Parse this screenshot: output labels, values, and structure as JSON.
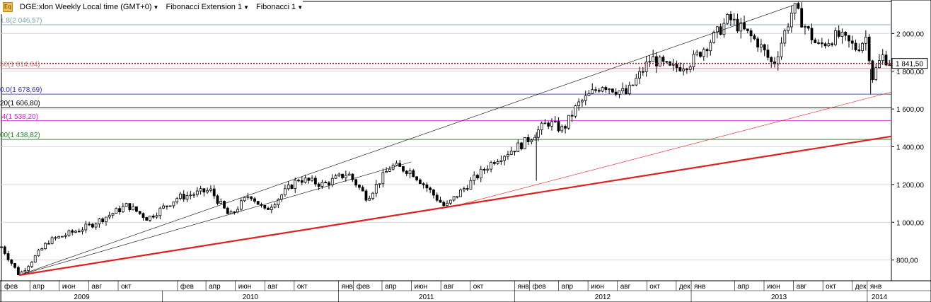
{
  "header": {
    "icon_label": "Eq",
    "symbol": "DGE:xlon Weekly Local time (GMT+0)",
    "study1": "Fibonacci Extension 1",
    "study2": "Fibonacci 1"
  },
  "price_marker": {
    "value_label": "1 841,50",
    "color": "#c00000"
  },
  "fib_levels": [
    {
      "label": "1.8(2 046,57)",
      "value": 2046.57,
      "color": "#7aa7b0"
    },
    {
      "label": "50(1 814,64)",
      "value": 1814.64,
      "color": "#c08080"
    },
    {
      "label": "0.0(1 678,69)",
      "value": 1678.69,
      "color": "#3030c0"
    },
    {
      "label": "20(1 606,80)",
      "value": 1606.8,
      "color": "#000000"
    },
    {
      "label": ".4(1 538,20)",
      "value": 1538.2,
      "color": "#d020d0"
    },
    {
      "label": "00(1 438,82)",
      "value": 1438.82,
      "color": "#208020"
    }
  ],
  "chart_data": {
    "type": "candlestick",
    "title": "DGE:xlon Weekly",
    "y_tick_labels": [
      "2 000,00",
      "1 800,00",
      "1 600,00",
      "1 400,00",
      "1 200,00",
      "1 000,00",
      "800,00"
    ],
    "y_tick_values": [
      2000,
      1800,
      1600,
      1400,
      1200,
      1000,
      800
    ],
    "ylim": [
      690,
      2170
    ],
    "x_range": [
      "2009-02-01",
      "2014-02-20"
    ],
    "month_labels": [
      {
        "label": "фев",
        "date": "2009-02-01"
      },
      {
        "label": "апр",
        "date": "2009-04-01"
      },
      {
        "label": "июн",
        "date": "2009-06-01"
      },
      {
        "label": "авг",
        "date": "2009-08-01"
      },
      {
        "label": "окт",
        "date": "2009-10-01"
      },
      {
        "label": "фев",
        "date": "2010-02-01"
      },
      {
        "label": "апр",
        "date": "2010-04-01"
      },
      {
        "label": "июн",
        "date": "2010-06-01"
      },
      {
        "label": "авг",
        "date": "2010-08-01"
      },
      {
        "label": "окт",
        "date": "2010-10-01"
      },
      {
        "label": "янв",
        "date": "2011-01-01"
      },
      {
        "label": "фев",
        "date": "2011-02-01"
      },
      {
        "label": "апр",
        "date": "2011-04-01"
      },
      {
        "label": "июн",
        "date": "2011-06-01"
      },
      {
        "label": "авг",
        "date": "2011-08-01"
      },
      {
        "label": "окт",
        "date": "2011-10-01"
      },
      {
        "label": "янв",
        "date": "2012-01-01"
      },
      {
        "label": "фев",
        "date": "2012-02-01"
      },
      {
        "label": "апр",
        "date": "2012-04-01"
      },
      {
        "label": "июн",
        "date": "2012-06-01"
      },
      {
        "label": "авг",
        "date": "2012-08-01"
      },
      {
        "label": "окт",
        "date": "2012-10-01"
      },
      {
        "label": "дек",
        "date": "2012-12-01"
      },
      {
        "label": "янв",
        "date": "2013-01-01"
      },
      {
        "label": "апр",
        "date": "2013-04-01"
      },
      {
        "label": "июн",
        "date": "2013-06-01"
      },
      {
        "label": "авг",
        "date": "2013-08-01"
      },
      {
        "label": "окт",
        "date": "2013-10-01"
      },
      {
        "label": "дек",
        "date": "2013-12-01"
      },
      {
        "label": "янв",
        "date": "2014-01-01"
      }
    ],
    "year_labels": [
      {
        "label": "2009",
        "start": "2009-02-01",
        "end": "2009-12-31"
      },
      {
        "label": "2010",
        "start": "2010-01-01",
        "end": "2010-12-31"
      },
      {
        "label": "2011",
        "start": "2011-01-01",
        "end": "2011-12-31"
      },
      {
        "label": "2012",
        "start": "2012-01-01",
        "end": "2012-12-31"
      },
      {
        "label": "2013",
        "start": "2013-01-01",
        "end": "2013-12-31"
      },
      {
        "label": "2014",
        "start": "2014-01-01",
        "end": "2014-02-20"
      }
    ],
    "anchors": [
      {
        "date": "2009-02-01",
        "close": 870
      },
      {
        "date": "2009-03-10",
        "close": 720
      },
      {
        "date": "2009-05-10",
        "close": 900
      },
      {
        "date": "2009-08-01",
        "close": 980
      },
      {
        "date": "2009-10-20",
        "close": 1090
      },
      {
        "date": "2009-12-01",
        "close": 1020
      },
      {
        "date": "2010-02-01",
        "close": 1130
      },
      {
        "date": "2010-04-10",
        "close": 1170
      },
      {
        "date": "2010-05-20",
        "close": 1030
      },
      {
        "date": "2010-07-01",
        "close": 1150
      },
      {
        "date": "2010-08-01",
        "close": 1060
      },
      {
        "date": "2010-10-10",
        "close": 1230
      },
      {
        "date": "2010-12-01",
        "close": 1200
      },
      {
        "date": "2011-01-20",
        "close": 1260
      },
      {
        "date": "2011-03-01",
        "close": 1130
      },
      {
        "date": "2011-04-20",
        "close": 1300
      },
      {
        "date": "2011-06-01",
        "close": 1270
      },
      {
        "date": "2011-08-10",
        "close": 1080
      },
      {
        "date": "2011-09-10",
        "close": 1160
      },
      {
        "date": "2011-11-20",
        "close": 1330
      },
      {
        "date": "2012-01-20",
        "close": 1420
      },
      {
        "date": "2012-03-10",
        "close": 1530
      },
      {
        "date": "2012-04-10",
        "close": 1490
      },
      {
        "date": "2012-05-10",
        "close": 1620
      },
      {
        "date": "2012-07-01",
        "close": 1730
      },
      {
        "date": "2012-08-20",
        "close": 1680
      },
      {
        "date": "2012-10-10",
        "close": 1870
      },
      {
        "date": "2012-11-20",
        "close": 1810
      },
      {
        "date": "2013-01-01",
        "close": 1850
      },
      {
        "date": "2013-02-20",
        "close": 1990
      },
      {
        "date": "2013-03-20",
        "close": 2080
      },
      {
        "date": "2013-05-20",
        "close": 1950
      },
      {
        "date": "2013-06-20",
        "close": 1830
      },
      {
        "date": "2013-08-01",
        "close": 2140
      },
      {
        "date": "2013-09-20",
        "close": 1930
      },
      {
        "date": "2013-11-01",
        "close": 1990
      },
      {
        "date": "2013-12-10",
        "close": 1920
      },
      {
        "date": "2014-01-01",
        "close": 1990
      },
      {
        "date": "2014-01-10",
        "close": 1760
      },
      {
        "date": "2014-02-01",
        "close": 1880
      },
      {
        "date": "2014-02-20",
        "close": 1841.5
      }
    ],
    "spikes": [
      {
        "date": "2012-02-15",
        "low": 1220
      },
      {
        "date": "2014-01-08",
        "low": 1680
      }
    ],
    "trendlines": [
      {
        "from": [
          "2009-03-10",
          720
        ],
        "to": [
          "2013-08-01",
          2150
        ],
        "color": "#000000",
        "width": 0.6
      },
      {
        "from": [
          "2009-03-10",
          720
        ],
        "to": [
          "2011-06-01",
          1320
        ],
        "color": "#000000",
        "width": 0.6
      },
      {
        "from": [
          "2009-03-10",
          720
        ],
        "to": [
          "2014-02-20",
          1455
        ],
        "color": "#e02020",
        "width": 2.2
      },
      {
        "from": [
          "2011-08-20",
          1080
        ],
        "to": [
          "2014-02-20",
          1690
        ],
        "color": "#e02020",
        "width": 0.6
      }
    ]
  }
}
